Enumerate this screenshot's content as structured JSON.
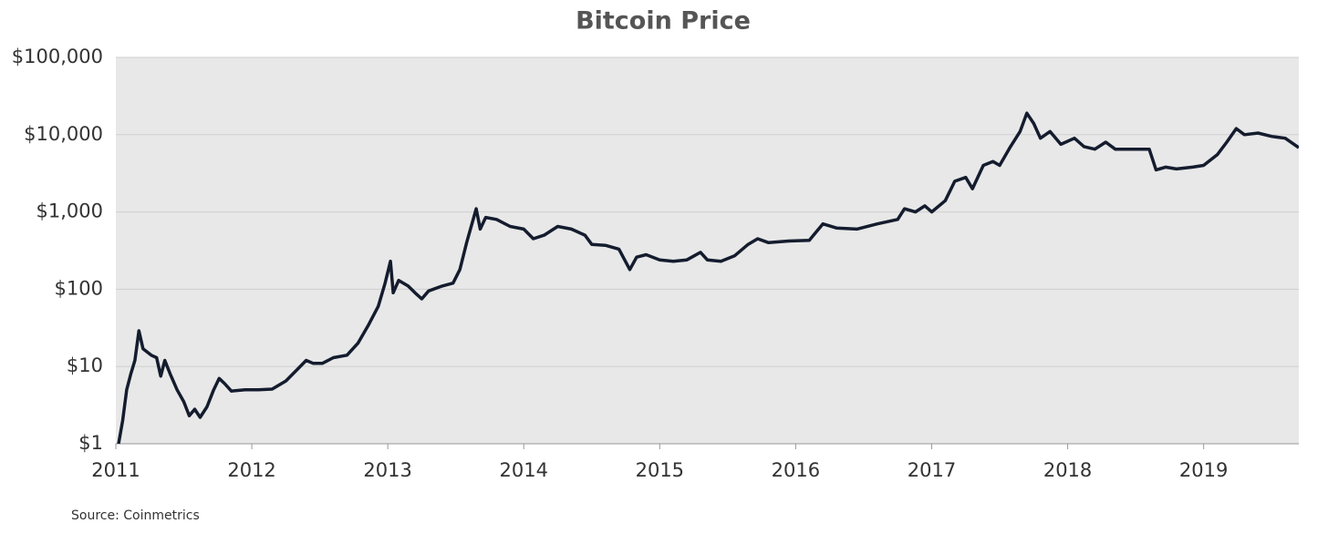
{
  "chart_data": {
    "type": "line",
    "title": "Bitcoin Price",
    "source": "Source: Coinmetrics",
    "x": [
      2011.02,
      2011.05,
      2011.08,
      2011.11,
      2011.14,
      2011.17,
      2011.2,
      2011.26,
      2011.3,
      2011.33,
      2011.36,
      2011.4,
      2011.45,
      2011.5,
      2011.54,
      2011.58,
      2011.62,
      2011.67,
      2011.72,
      2011.76,
      2011.8,
      2011.85,
      2011.95,
      2012.05,
      2012.15,
      2012.25,
      2012.33,
      2012.4,
      2012.45,
      2012.52,
      2012.6,
      2012.7,
      2012.78,
      2012.86,
      2012.93,
      2012.98,
      2013.02,
      2013.04,
      2013.08,
      2013.15,
      2013.2,
      2013.25,
      2013.3,
      2013.4,
      2013.48,
      2013.53,
      2013.58,
      2013.65,
      2013.68,
      2013.72,
      2013.8,
      2013.9,
      2014.0,
      2014.07,
      2014.15,
      2014.25,
      2014.35,
      2014.45,
      2014.5,
      2014.6,
      2014.7,
      2014.78,
      2014.83,
      2014.9,
      2015.0,
      2015.1,
      2015.2,
      2015.3,
      2015.35,
      2015.45,
      2015.55,
      2015.65,
      2015.72,
      2015.8,
      2015.95,
      2016.1,
      2016.2,
      2016.3,
      2016.45,
      2016.6,
      2016.75,
      2016.8,
      2016.88,
      2016.95,
      2017.0,
      2017.1,
      2017.17,
      2017.25,
      2017.3,
      2017.38,
      2017.45,
      2017.5,
      2017.58,
      2017.65,
      2017.7,
      2017.75,
      2017.8,
      2017.87,
      2017.95,
      2018.05,
      2018.12,
      2018.2,
      2018.28,
      2018.35,
      2018.5,
      2018.6,
      2018.65,
      2018.72,
      2018.8,
      2018.92,
      2019.0,
      2019.1,
      2019.17,
      2019.24,
      2019.3,
      2019.4,
      2019.5,
      2019.6,
      2019.7
    ],
    "series": [
      {
        "name": "Bitcoin Price",
        "color": "#141c2e",
        "values": [
          1,
          2,
          5,
          8,
          12,
          29,
          17,
          14,
          13,
          7.5,
          12,
          8,
          5,
          3.5,
          2.3,
          2.8,
          2.2,
          3,
          5,
          7,
          6,
          4.8,
          5,
          5,
          5.1,
          6.5,
          9,
          12,
          11,
          11,
          13,
          14,
          20,
          35,
          60,
          120,
          230,
          90,
          130,
          110,
          90,
          75,
          95,
          110,
          120,
          180,
          400,
          1100,
          600,
          850,
          800,
          650,
          600,
          450,
          500,
          650,
          600,
          500,
          380,
          370,
          330,
          180,
          260,
          280,
          240,
          230,
          240,
          300,
          240,
          230,
          270,
          380,
          450,
          400,
          420,
          430,
          700,
          620,
          600,
          700,
          800,
          1100,
          1000,
          1200,
          1000,
          1400,
          2500,
          2800,
          2000,
          4000,
          4500,
          4000,
          7000,
          11000,
          19000,
          14000,
          9000,
          11000,
          7500,
          9000,
          7000,
          6500,
          8000,
          6500,
          6500,
          6500,
          3500,
          3800,
          3600,
          3800,
          4000,
          5500,
          8000,
          12000,
          10000,
          10500,
          9500,
          9000,
          6800
        ]
      }
    ],
    "xlim": [
      2011,
      2019.7
    ],
    "xticks": [
      2011,
      2012,
      2013,
      2014,
      2015,
      2016,
      2017,
      2018,
      2019
    ],
    "ylim": [
      1,
      100000
    ],
    "ylog": true,
    "yticks": [
      {
        "value": 1,
        "label": "$1"
      },
      {
        "value": 10,
        "label": "$10"
      },
      {
        "value": 100,
        "label": "$100"
      },
      {
        "value": 1000,
        "label": "$1,000"
      },
      {
        "value": 10000,
        "label": "$10,000"
      },
      {
        "value": 100000,
        "label": "$100,000"
      }
    ],
    "grid": true
  }
}
